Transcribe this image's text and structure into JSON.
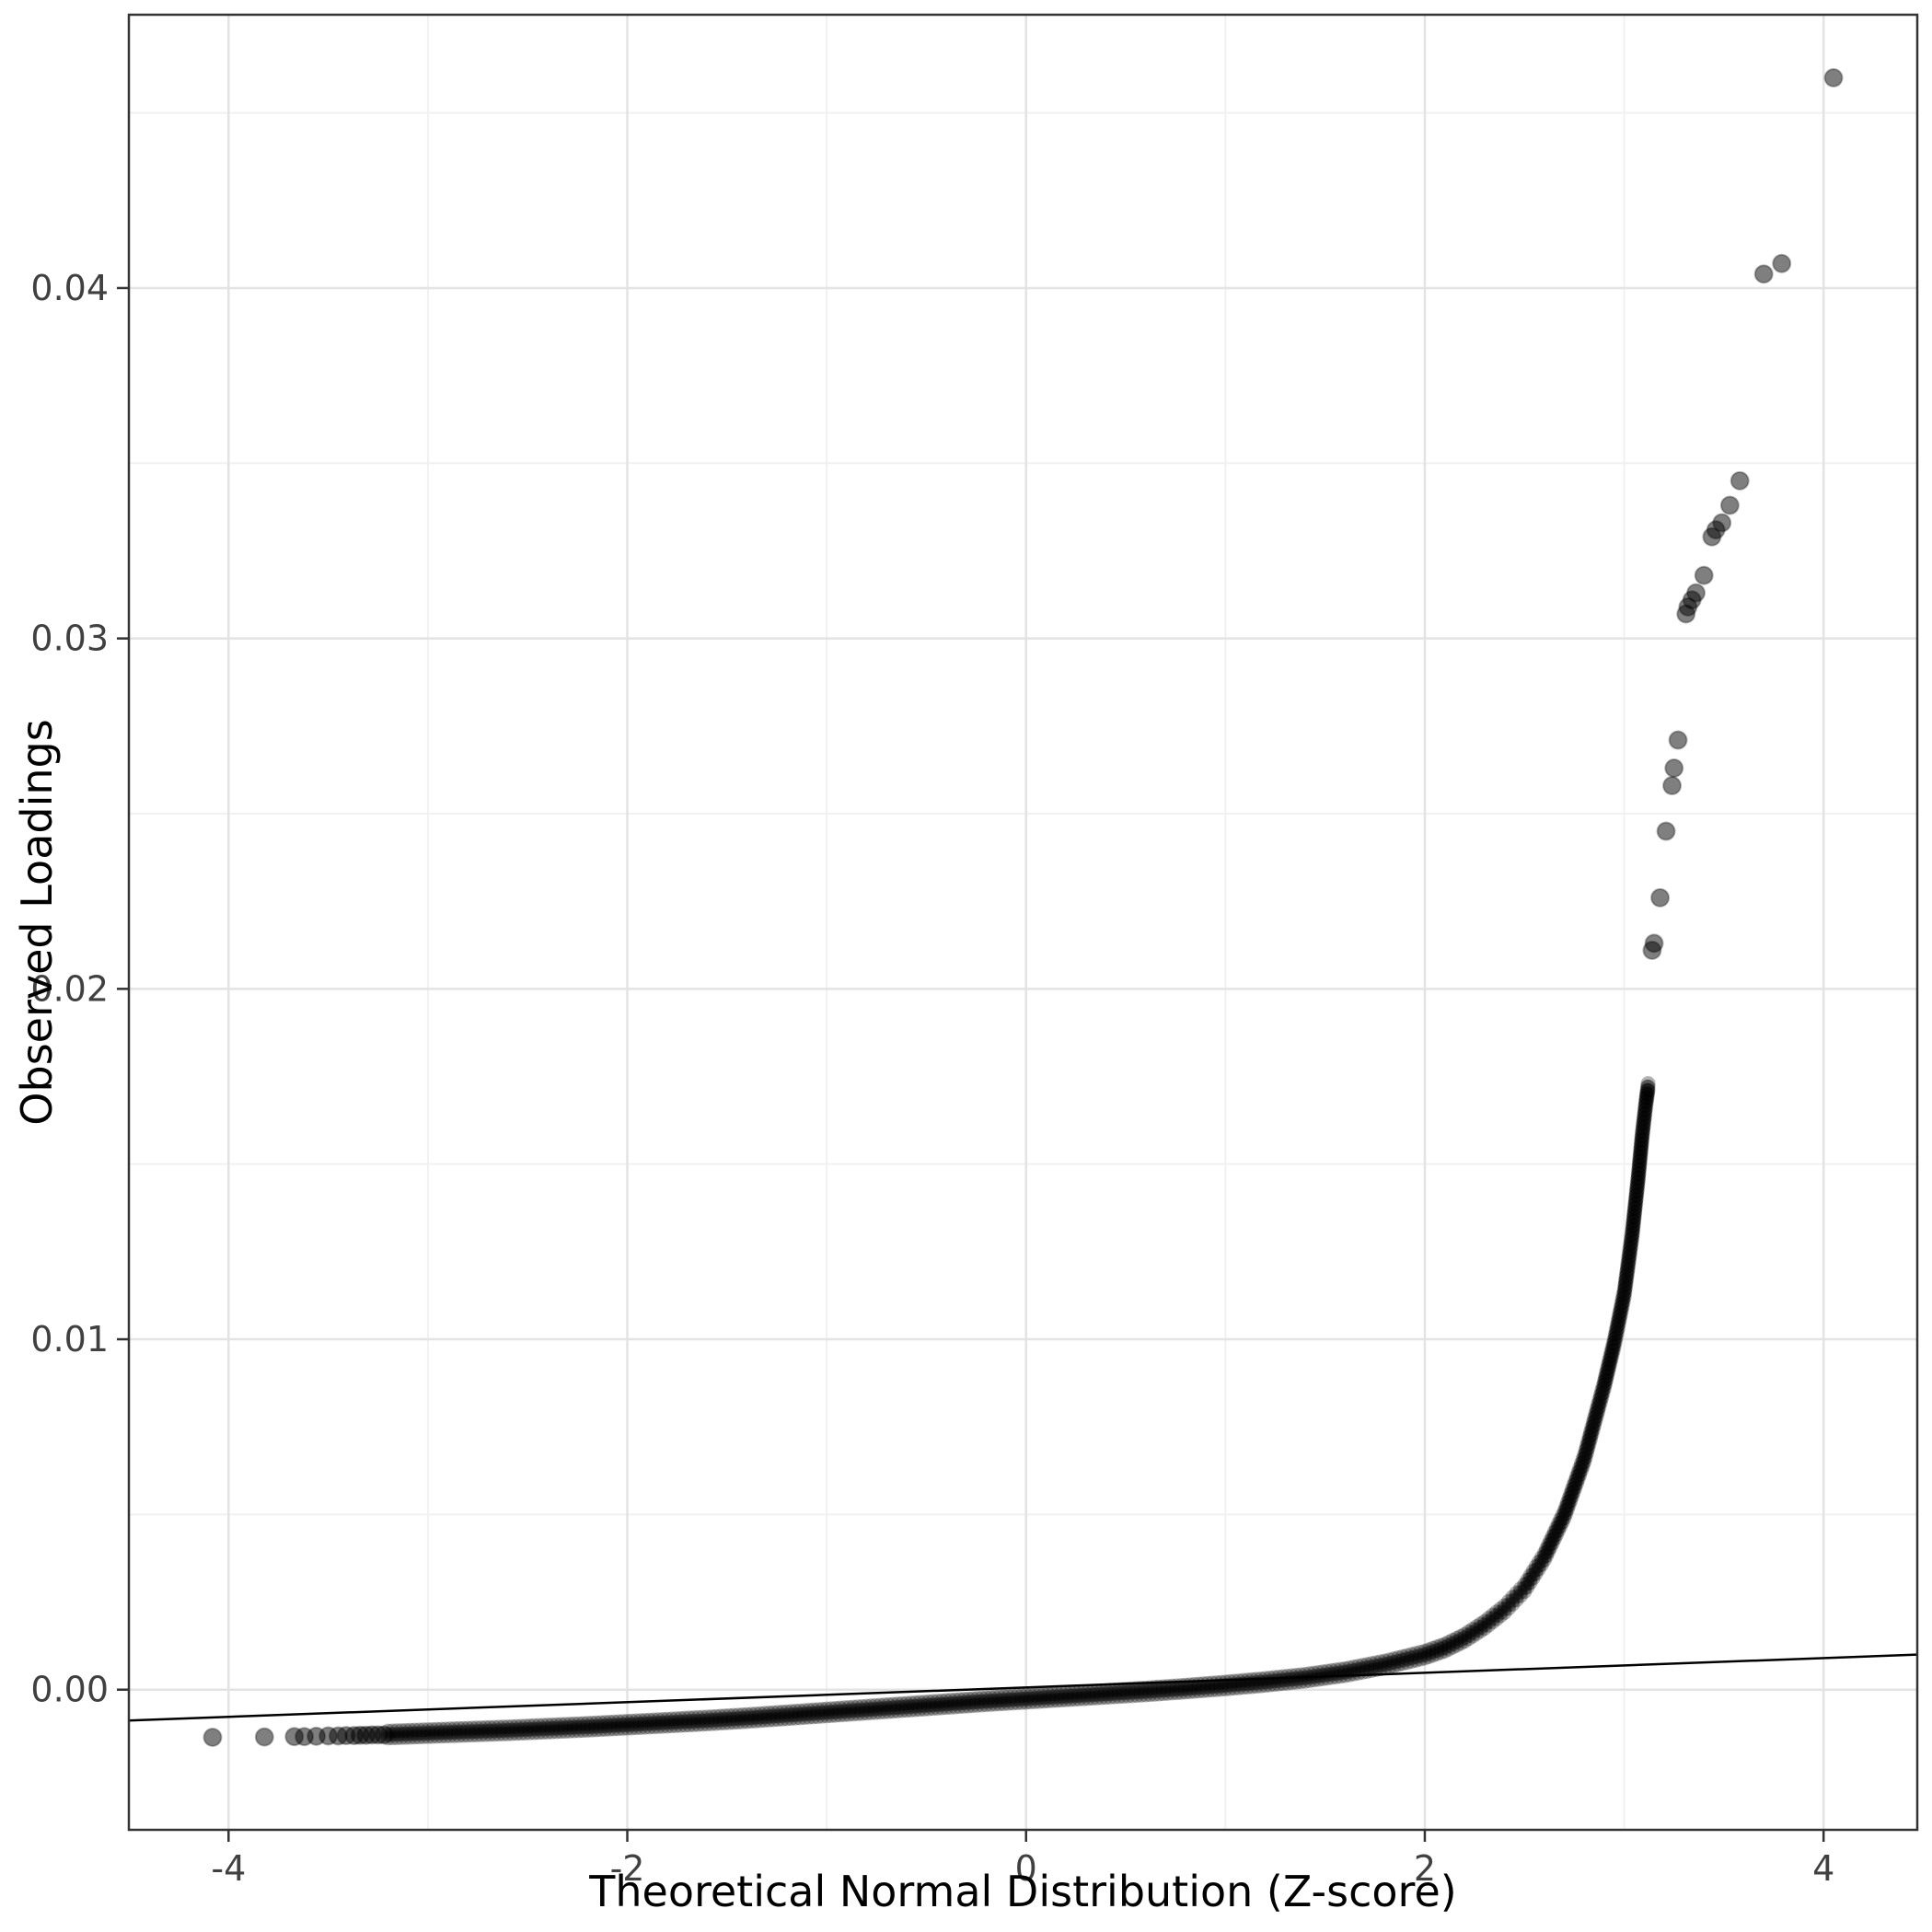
{
  "chart_data": {
    "type": "scatter",
    "title": "",
    "xlabel": "Theoretical Normal Distribution (Z-score)",
    "ylabel": "Observed Loadings",
    "x_range": [
      -4.5,
      4.47
    ],
    "y_range": [
      -0.004,
      0.0478
    ],
    "x_ticks": {
      "values": [
        -4,
        -2,
        0,
        2,
        4
      ],
      "labels": [
        "-4",
        "-2",
        "0",
        "2",
        "4"
      ]
    },
    "x_minor_ticks": [
      -3,
      -1,
      1,
      3
    ],
    "y_ticks": {
      "values": [
        0,
        0.01,
        0.02,
        0.03,
        0.04
      ],
      "labels": [
        "0.00",
        "0.01",
        "0.02",
        "0.03",
        "0.04"
      ]
    },
    "y_minor_ticks": [
      0.005,
      0.015,
      0.025,
      0.035,
      0.045
    ],
    "grid": true,
    "legend": "none",
    "colors": {
      "background": "#ffffff",
      "grid_major": "#e3e3e3",
      "grid_minor": "#f1f1f1",
      "panel_border": "#333333",
      "axis_text": "#404040",
      "tick_mark": "#333333",
      "point": "#000000",
      "reference_line": "#000000"
    },
    "point_alpha_band": 0.3,
    "point_alpha_single": 0.5,
    "reference_line": {
      "x": [
        -4.5,
        4.47
      ],
      "y": [
        -0.00088,
        0.001
      ]
    },
    "series": [
      {
        "name": "qq-dense-band",
        "style": "dense-band",
        "anchors": [
          [
            -3.2,
            -0.00128
          ],
          [
            -3.0,
            -0.00124
          ],
          [
            -2.8,
            -0.0012
          ],
          [
            -2.6,
            -0.00116
          ],
          [
            -2.4,
            -0.00111
          ],
          [
            -2.2,
            -0.00106
          ],
          [
            -2.0,
            -0.001
          ],
          [
            -1.8,
            -0.00094
          ],
          [
            -1.6,
            -0.00088
          ],
          [
            -1.4,
            -0.00081
          ],
          [
            -1.2,
            -0.00073
          ],
          [
            -1.0,
            -0.00065
          ],
          [
            -0.8,
            -0.00057
          ],
          [
            -0.6,
            -0.00049
          ],
          [
            -0.4,
            -0.00041
          ],
          [
            -0.2,
            -0.00033
          ],
          [
            0.0,
            -0.00026
          ],
          [
            0.2,
            -0.00019
          ],
          [
            0.4,
            -0.00012
          ],
          [
            0.6,
            -5e-05
          ],
          [
            0.8,
            3e-05
          ],
          [
            1.0,
            0.00012
          ],
          [
            1.2,
            0.00022
          ],
          [
            1.4,
            0.00034
          ],
          [
            1.6,
            0.0005
          ],
          [
            1.8,
            0.00072
          ],
          [
            2.0,
            0.001
          ],
          [
            2.1,
            0.0012
          ],
          [
            2.2,
            0.00148
          ],
          [
            2.3,
            0.00185
          ],
          [
            2.4,
            0.0023
          ],
          [
            2.5,
            0.0029
          ],
          [
            2.6,
            0.0038
          ],
          [
            2.7,
            0.005
          ],
          [
            2.8,
            0.0066
          ],
          [
            2.9,
            0.0087
          ],
          [
            2.95,
            0.0099
          ],
          [
            3.0,
            0.0113
          ],
          [
            3.04,
            0.013
          ],
          [
            3.07,
            0.0146
          ],
          [
            3.09,
            0.0158
          ],
          [
            3.11,
            0.0168
          ],
          [
            3.12,
            0.0172
          ]
        ]
      },
      {
        "name": "left-tail-points",
        "style": "points",
        "points": [
          [
            -4.08,
            -0.00136
          ],
          [
            -3.82,
            -0.00135
          ],
          [
            -3.67,
            -0.00134
          ],
          [
            -3.62,
            -0.00134
          ],
          [
            -3.56,
            -0.00133
          ],
          [
            -3.5,
            -0.00132
          ],
          [
            -3.45,
            -0.00132
          ],
          [
            -3.41,
            -0.00131
          ],
          [
            -3.37,
            -0.00131
          ],
          [
            -3.34,
            -0.0013
          ],
          [
            -3.31,
            -0.0013
          ],
          [
            -3.28,
            -0.00129
          ],
          [
            -3.25,
            -0.00129
          ],
          [
            -3.22,
            -0.00129
          ]
        ]
      },
      {
        "name": "right-tail-points",
        "style": "points",
        "points": [
          [
            3.14,
            0.0211
          ],
          [
            3.15,
            0.0213
          ],
          [
            3.18,
            0.0226
          ],
          [
            3.21,
            0.0245
          ],
          [
            3.24,
            0.0258
          ],
          [
            3.25,
            0.0263
          ],
          [
            3.27,
            0.0271
          ],
          [
            3.31,
            0.0307
          ],
          [
            3.32,
            0.0309
          ],
          [
            3.34,
            0.0311
          ],
          [
            3.36,
            0.0313
          ],
          [
            3.4,
            0.0318
          ],
          [
            3.44,
            0.0329
          ],
          [
            3.46,
            0.0331
          ],
          [
            3.49,
            0.0333
          ],
          [
            3.53,
            0.0338
          ],
          [
            3.58,
            0.0345
          ],
          [
            3.7,
            0.0404
          ],
          [
            3.79,
            0.0407
          ],
          [
            4.05,
            0.046
          ]
        ]
      }
    ]
  }
}
